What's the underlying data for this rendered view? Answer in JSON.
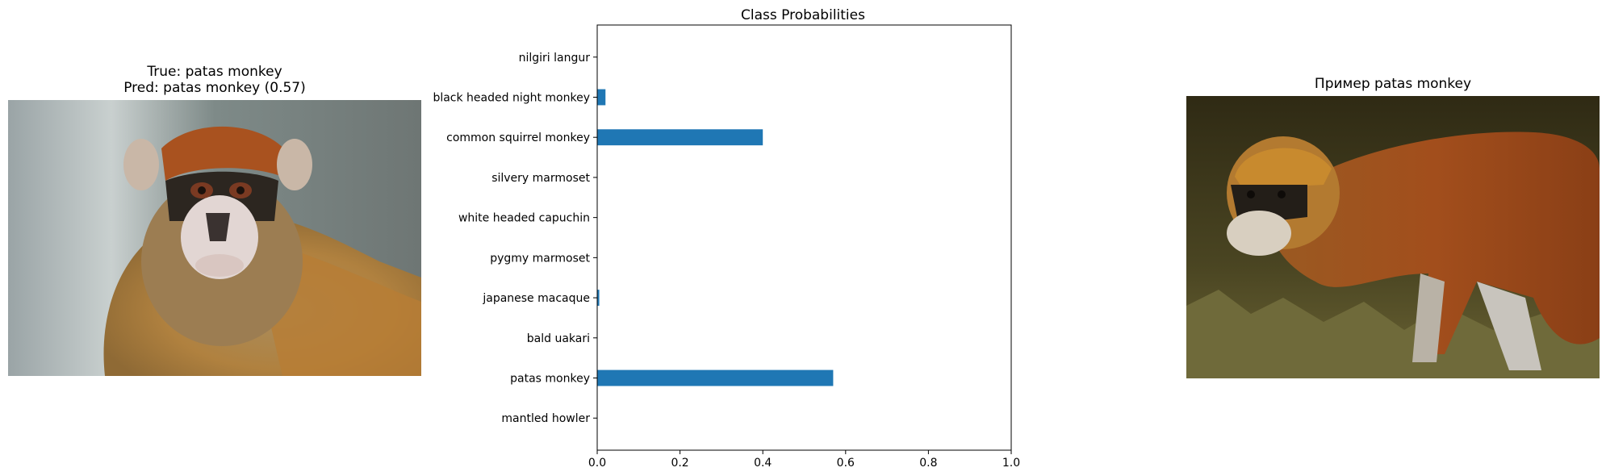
{
  "left_panel": {
    "title_line1": "True: patas monkey",
    "title_line2": "Pred: patas monkey (0.57)"
  },
  "right_panel": {
    "title": "Пример patas monkey"
  },
  "colors": {
    "bar": "#1f77b4",
    "axis": "#000000"
  },
  "chart_data": {
    "type": "bar",
    "orientation": "horizontal",
    "title": "Class Probabilities",
    "xlabel": "",
    "ylabel": "",
    "categories": [
      "mantled howler",
      "patas monkey",
      "bald uakari",
      "japanese macaque",
      "pygmy marmoset",
      "white headed capuchin",
      "silvery marmoset",
      "common squirrel monkey",
      "black headed night monkey",
      "nilgiri langur"
    ],
    "values": [
      0.0,
      0.57,
      0.0,
      0.005,
      0.0,
      0.0,
      0.0,
      0.4,
      0.02,
      0.0
    ],
    "xlim": [
      0,
      1.0
    ],
    "xticks": [
      "0.0",
      "0.2",
      "0.4",
      "0.6",
      "0.8",
      "1.0"
    ],
    "grid": false,
    "legend": "none"
  }
}
